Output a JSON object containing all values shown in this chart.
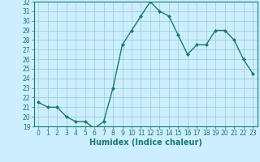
{
  "x": [
    0,
    1,
    2,
    3,
    4,
    5,
    6,
    7,
    8,
    9,
    10,
    11,
    12,
    13,
    14,
    15,
    16,
    17,
    18,
    19,
    20,
    21,
    22,
    23
  ],
  "y": [
    21.5,
    21.0,
    21.0,
    20.0,
    19.5,
    19.5,
    18.8,
    19.5,
    23.0,
    27.5,
    29.0,
    30.5,
    32.0,
    31.0,
    30.5,
    28.5,
    26.5,
    27.5,
    27.5,
    29.0,
    29.0,
    28.0,
    26.0,
    24.5
  ],
  "line_color": "#1a7a6e",
  "marker": "D",
  "marker_size": 2,
  "bg_color": "#cceeff",
  "grid_color": "#99cccc",
  "xlabel": "Humidex (Indice chaleur)",
  "ylim": [
    19,
    32
  ],
  "xlim": [
    -0.5,
    23.5
  ],
  "yticks": [
    19,
    20,
    21,
    22,
    23,
    24,
    25,
    26,
    27,
    28,
    29,
    30,
    31,
    32
  ],
  "xticks": [
    0,
    1,
    2,
    3,
    4,
    5,
    6,
    7,
    8,
    9,
    10,
    11,
    12,
    13,
    14,
    15,
    16,
    17,
    18,
    19,
    20,
    21,
    22,
    23
  ],
  "tick_label_fontsize": 5.5,
  "xlabel_fontsize": 7,
  "line_width": 1.0
}
